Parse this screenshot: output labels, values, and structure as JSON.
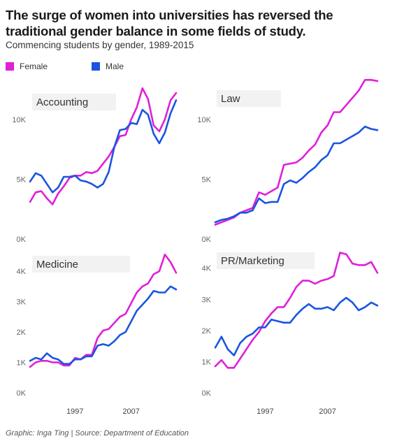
{
  "title": "The surge of women into universities has reversed the traditional gender balance in some fields of study.",
  "subtitle": "Commencing students by gender, 1989-2015",
  "legend": [
    {
      "label": "Female",
      "color": "#e020d8"
    },
    {
      "label": "Male",
      "color": "#1a55e0"
    }
  ],
  "credit": "Graphic: Inga Ting | Source: Department of Education",
  "chart_data": [
    {
      "type": "line",
      "title": "Accounting",
      "x": [
        1989,
        1990,
        1991,
        1992,
        1993,
        1994,
        1995,
        1996,
        1997,
        1998,
        1999,
        2000,
        2001,
        2002,
        2003,
        2004,
        2005,
        2006,
        2007,
        2008,
        2009,
        2010,
        2011,
        2012,
        2013,
        2014,
        2015
      ],
      "ylim": [
        0,
        12500
      ],
      "yticks": [
        0,
        5000,
        10000
      ],
      "yticklabels": [
        "0K",
        "5K",
        "10K"
      ],
      "xticks": [
        1997,
        2007
      ],
      "xticklabels": [
        "1997",
        "2007"
      ],
      "series": [
        {
          "name": "Female",
          "color": "#e020d8",
          "values": [
            3100,
            3900,
            4000,
            3400,
            2900,
            3800,
            4400,
            5100,
            5300,
            5300,
            5600,
            5500,
            5700,
            6300,
            6900,
            7700,
            8600,
            8700,
            10000,
            11000,
            12600,
            11700,
            9500,
            9000,
            10000,
            11600,
            12200
          ]
        },
        {
          "name": "Male",
          "color": "#1a55e0",
          "values": [
            4800,
            5500,
            5300,
            4600,
            3900,
            4300,
            5200,
            5200,
            5300,
            4900,
            4800,
            4600,
            4300,
            4600,
            5600,
            7700,
            9100,
            9200,
            9700,
            9600,
            10800,
            10400,
            8800,
            8000,
            8900,
            10500,
            11600
          ]
        }
      ]
    },
    {
      "type": "line",
      "title": "Law",
      "x": [
        1989,
        1990,
        1991,
        1992,
        1993,
        1994,
        1995,
        1996,
        1997,
        1998,
        1999,
        2000,
        2001,
        2002,
        2003,
        2004,
        2005,
        2006,
        2007,
        2008,
        2009,
        2010,
        2011,
        2012,
        2013,
        2014,
        2015
      ],
      "ylim": [
        0,
        12500
      ],
      "yticks": [
        0,
        5000,
        10000
      ],
      "yticklabels": [
        "0K",
        "5K",
        "10K"
      ],
      "xticks": [
        1997,
        2007
      ],
      "xticklabels": [
        "1997",
        "2007"
      ],
      "series": [
        {
          "name": "Female",
          "color": "#e020d8",
          "values": [
            1200,
            1400,
            1600,
            1800,
            2200,
            2400,
            2600,
            3900,
            3700,
            4000,
            4300,
            6200,
            6300,
            6400,
            6800,
            7400,
            7900,
            8900,
            9500,
            10600,
            10600,
            11200,
            11800,
            12400,
            13300,
            13300,
            13200
          ]
        },
        {
          "name": "Male",
          "color": "#1a55e0",
          "values": [
            1400,
            1600,
            1700,
            1900,
            2200,
            2200,
            2400,
            3400,
            3000,
            3100,
            3100,
            4600,
            4900,
            4700,
            5100,
            5600,
            6000,
            6600,
            7000,
            8000,
            8000,
            8300,
            8600,
            8900,
            9400,
            9200,
            9100
          ]
        }
      ]
    },
    {
      "type": "line",
      "title": "Medicine",
      "x": [
        1989,
        1990,
        1991,
        1992,
        1993,
        1994,
        1995,
        1996,
        1997,
        1998,
        1999,
        2000,
        2001,
        2002,
        2003,
        2004,
        2005,
        2006,
        2007,
        2008,
        2009,
        2010,
        2011,
        2012,
        2013,
        2014,
        2015
      ],
      "ylim": [
        0,
        4600
      ],
      "yticks": [
        0,
        1000,
        2000,
        3000,
        4000
      ],
      "yticklabels": [
        "0K",
        "1K",
        "2K",
        "3K",
        "4K"
      ],
      "xticks": [
        1997,
        2007
      ],
      "xticklabels": [
        "1997",
        "2007"
      ],
      "series": [
        {
          "name": "Female",
          "color": "#e020d8",
          "values": [
            850,
            1000,
            1050,
            1050,
            1000,
            1000,
            900,
            900,
            1150,
            1100,
            1250,
            1250,
            1800,
            2050,
            2100,
            2300,
            2500,
            2600,
            2950,
            3300,
            3500,
            3600,
            3900,
            4000,
            4550,
            4300,
            3950
          ]
        },
        {
          "name": "Male",
          "color": "#1a55e0",
          "values": [
            1050,
            1150,
            1100,
            1300,
            1150,
            1100,
            950,
            950,
            1100,
            1100,
            1200,
            1200,
            1550,
            1600,
            1550,
            1700,
            1900,
            2000,
            2350,
            2700,
            2900,
            3100,
            3350,
            3300,
            3300,
            3500,
            3400
          ]
        }
      ]
    },
    {
      "type": "line",
      "title": "PR/Marketing",
      "x": [
        1989,
        1990,
        1991,
        1992,
        1993,
        1994,
        1995,
        1996,
        1997,
        1998,
        1999,
        2000,
        2001,
        2002,
        2003,
        2004,
        2005,
        2006,
        2007,
        2008,
        2009,
        2010,
        2011,
        2012,
        2013,
        2014,
        2015
      ],
      "ylim": [
        0,
        4600
      ],
      "yticks": [
        0,
        1000,
        2000,
        3000,
        4000
      ],
      "yticklabels": [
        "0K",
        "1K",
        "2K",
        "3K",
        "4K"
      ],
      "xticks": [
        1997,
        2007
      ],
      "xticklabels": [
        "1997",
        "2007"
      ],
      "series": [
        {
          "name": "Female",
          "color": "#e020d8",
          "values": [
            850,
            1050,
            800,
            800,
            1100,
            1400,
            1700,
            1950,
            2300,
            2550,
            2750,
            2750,
            3050,
            3400,
            3600,
            3600,
            3500,
            3600,
            3650,
            3750,
            4500,
            4450,
            4150,
            4100,
            4100,
            4200,
            3850
          ]
        },
        {
          "name": "Male",
          "color": "#1a55e0",
          "values": [
            1450,
            1800,
            1400,
            1200,
            1600,
            1800,
            1900,
            2100,
            2100,
            2350,
            2300,
            2250,
            2250,
            2500,
            2700,
            2850,
            2700,
            2700,
            2750,
            2650,
            2900,
            3050,
            2900,
            2650,
            2750,
            2900,
            2800
          ]
        }
      ]
    }
  ]
}
